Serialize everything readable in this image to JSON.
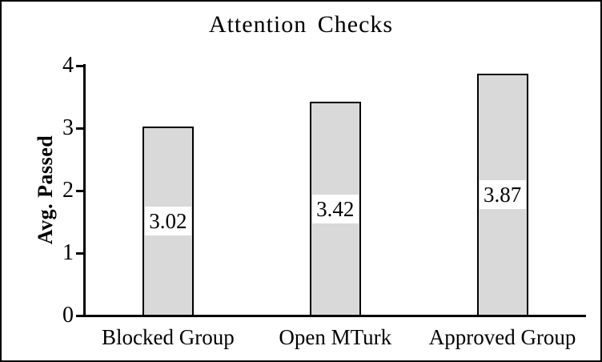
{
  "chart_data": {
    "type": "bar",
    "title": "Attention Checks",
    "xlabel": "",
    "ylabel": "Avg. Passed",
    "categories": [
      "Blocked Group",
      "Open MTurk",
      "Approved Group"
    ],
    "values": [
      3.02,
      3.42,
      3.87
    ],
    "value_labels": [
      "3.02",
      "3.42",
      "3.87"
    ],
    "ylim": [
      0,
      4
    ],
    "yticks": [
      "0",
      "1",
      "2",
      "3",
      "4"
    ],
    "grid": false,
    "legend_position": "none",
    "bar_fill_color": "#d9d9d9",
    "bar_border_color": "#000000",
    "value_label_background": "#ffffff",
    "frame_color": "#000000"
  }
}
